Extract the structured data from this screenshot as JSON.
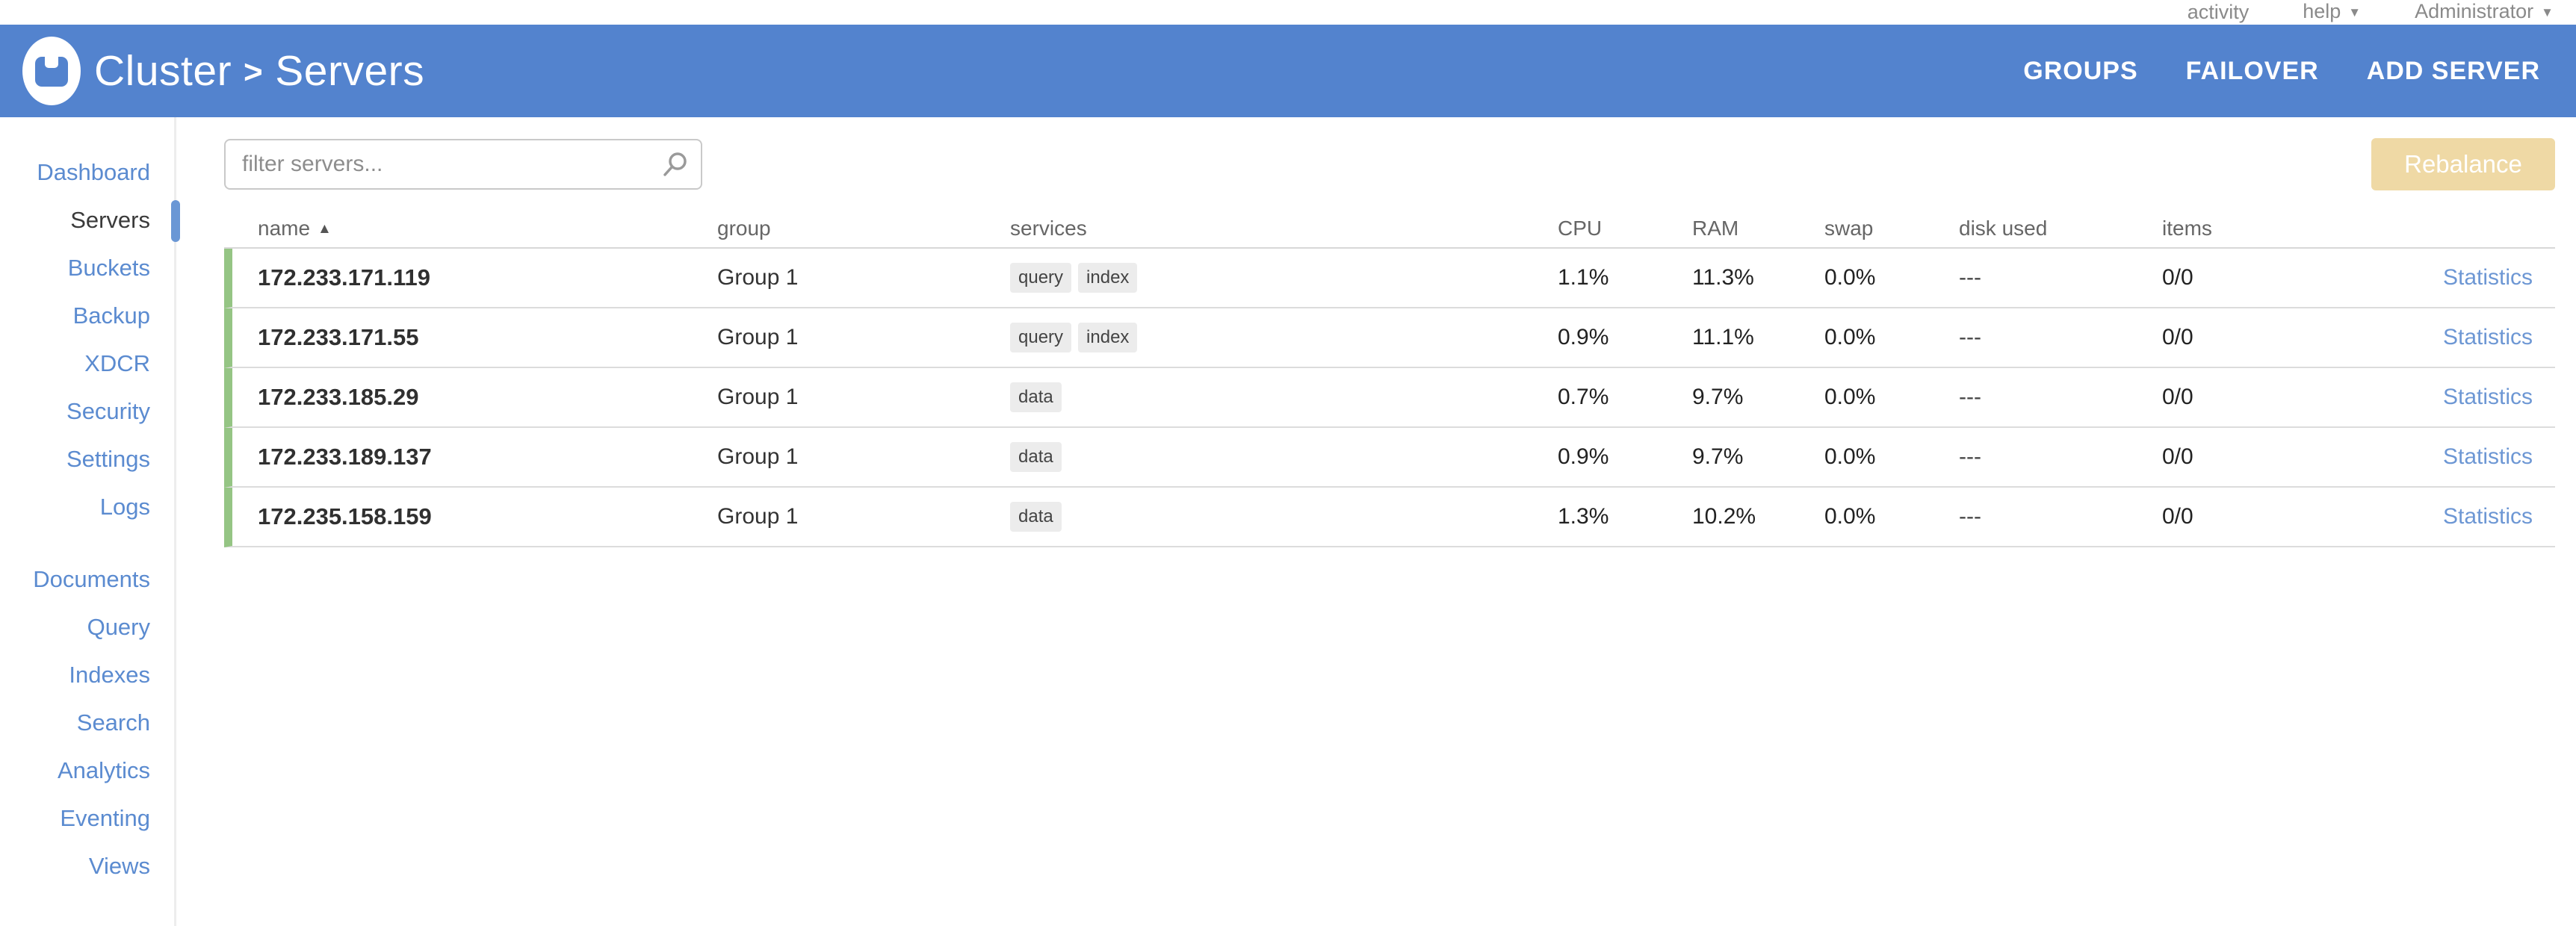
{
  "utility_bar": {
    "activity": "activity",
    "help": "help",
    "user": "Administrator"
  },
  "header": {
    "breadcrumb_section": "Cluster",
    "breadcrumb_separator": ">",
    "breadcrumb_page": "Servers",
    "nav": [
      "GROUPS",
      "FAILOVER",
      "ADD SERVER"
    ]
  },
  "sidebar": {
    "primary": [
      {
        "label": "Dashboard"
      },
      {
        "label": "Servers",
        "active": true
      },
      {
        "label": "Buckets"
      },
      {
        "label": "Backup"
      },
      {
        "label": "XDCR"
      },
      {
        "label": "Security"
      },
      {
        "label": "Settings"
      },
      {
        "label": "Logs"
      }
    ],
    "secondary": [
      {
        "label": "Documents"
      },
      {
        "label": "Query"
      },
      {
        "label": "Indexes"
      },
      {
        "label": "Search"
      },
      {
        "label": "Analytics"
      },
      {
        "label": "Eventing"
      },
      {
        "label": "Views"
      }
    ]
  },
  "toolbar": {
    "filter_placeholder": "filter servers...",
    "rebalance_label": "Rebalance"
  },
  "table": {
    "columns": [
      "name",
      "group",
      "services",
      "CPU",
      "RAM",
      "swap",
      "disk used",
      "items"
    ],
    "sort_column": "name",
    "sort_indicator": "▲",
    "rows": [
      {
        "name": "172.233.171.119",
        "group": "Group 1",
        "services": [
          "query",
          "index"
        ],
        "cpu": "1.1%",
        "ram": "11.3%",
        "swap": "0.0%",
        "disk_used": "---",
        "items": "0/0",
        "action": "Statistics"
      },
      {
        "name": "172.233.171.55",
        "group": "Group 1",
        "services": [
          "query",
          "index"
        ],
        "cpu": "0.9%",
        "ram": "11.1%",
        "swap": "0.0%",
        "disk_used": "---",
        "items": "0/0",
        "action": "Statistics"
      },
      {
        "name": "172.233.185.29",
        "group": "Group 1",
        "services": [
          "data"
        ],
        "cpu": "0.7%",
        "ram": "9.7%",
        "swap": "0.0%",
        "disk_used": "---",
        "items": "0/0",
        "action": "Statistics"
      },
      {
        "name": "172.233.189.137",
        "group": "Group 1",
        "services": [
          "data"
        ],
        "cpu": "0.9%",
        "ram": "9.7%",
        "swap": "0.0%",
        "disk_used": "---",
        "items": "0/0",
        "action": "Statistics"
      },
      {
        "name": "172.235.158.159",
        "group": "Group 1",
        "services": [
          "data"
        ],
        "cpu": "1.3%",
        "ram": "10.2%",
        "swap": "0.0%",
        "disk_used": "---",
        "items": "0/0",
        "action": "Statistics"
      }
    ]
  },
  "colors": {
    "header_blue": "#5383ce",
    "link_blue": "#5b8bd0",
    "healthy_green": "#95c584",
    "rebalance_tan": "#efd9a5"
  }
}
